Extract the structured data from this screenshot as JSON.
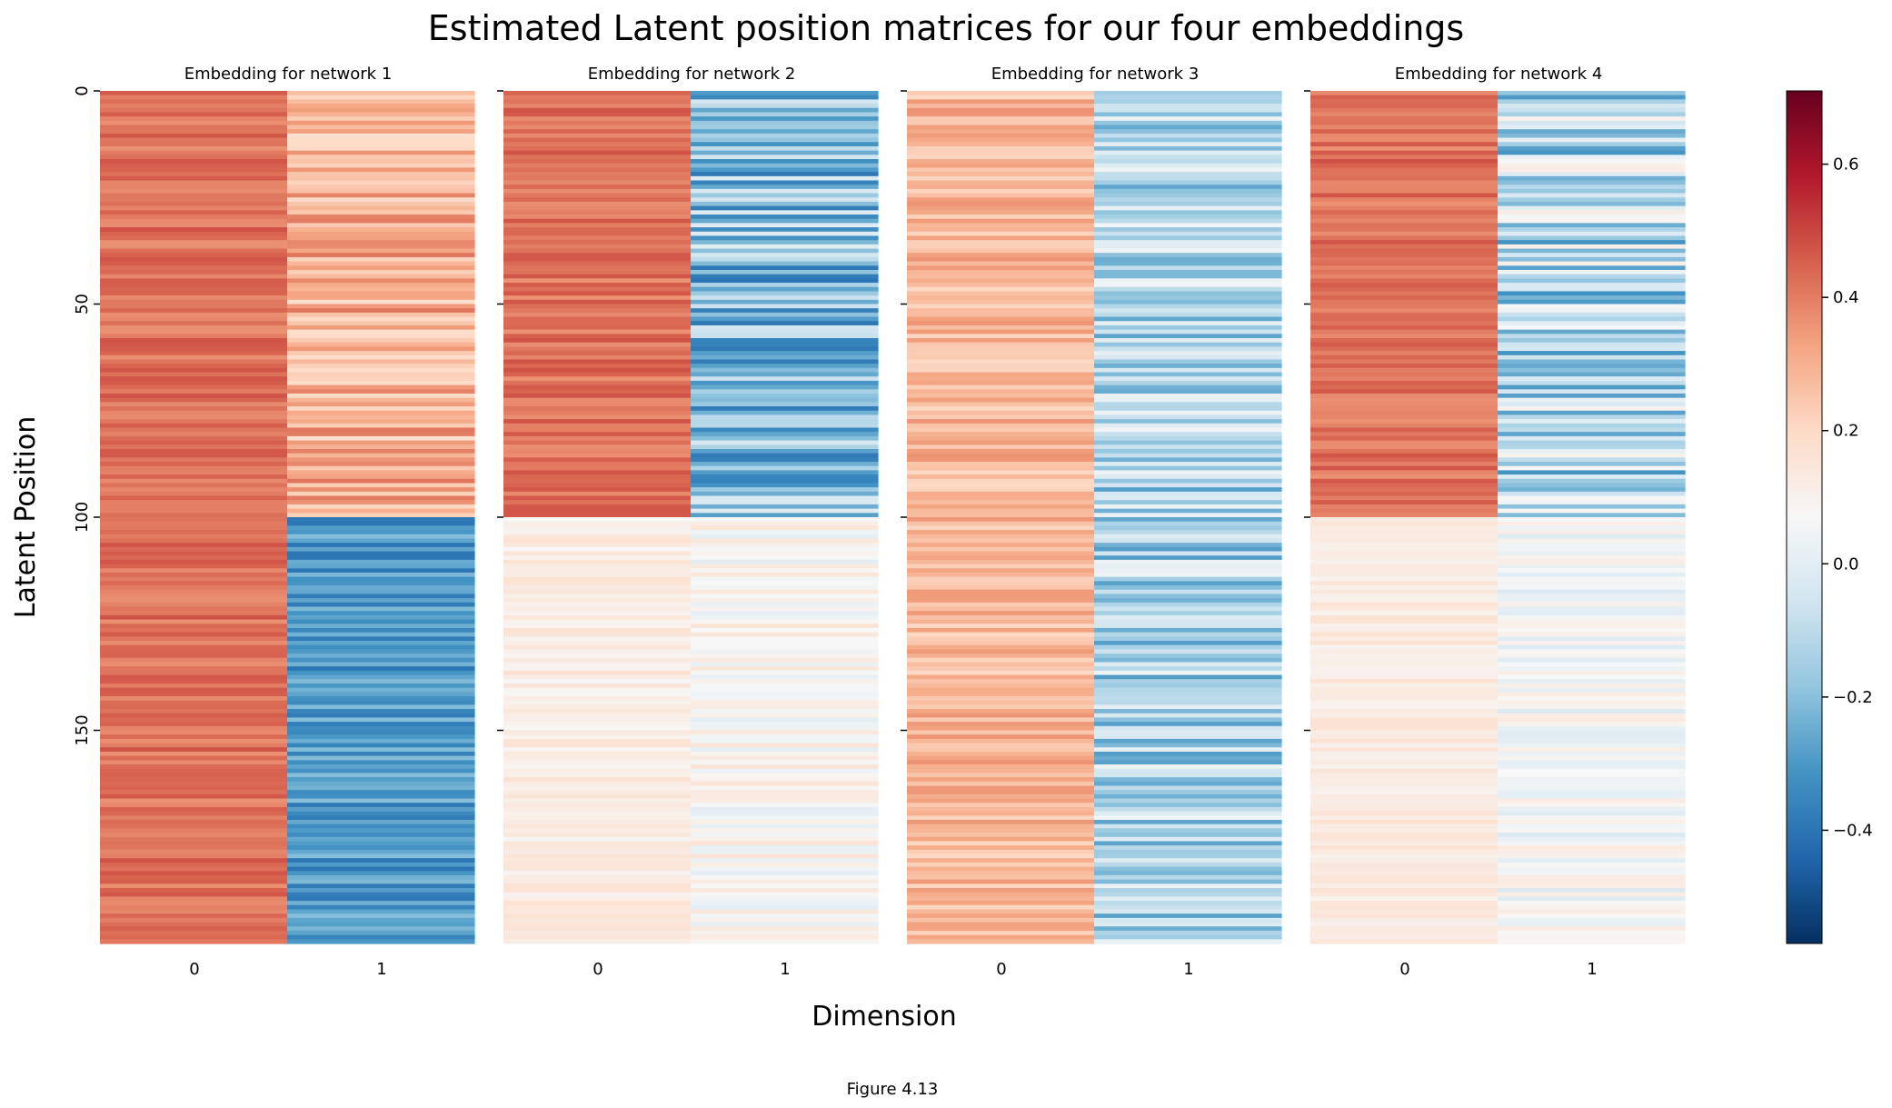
{
  "figure": {
    "title": "Estimated Latent position matrices for our four embeddings",
    "xlabel": "Dimension",
    "ylabel": "Latent Position",
    "caption": "Figure 4.13"
  },
  "colorbar": {
    "colormap": "RdBu_r",
    "vmin": -0.57,
    "vmax": 0.71,
    "ticks": [
      0.6,
      0.4,
      0.2,
      0.0,
      -0.2,
      -0.4
    ],
    "tick_labels": [
      "0.6",
      "0.4",
      "0.2",
      "0.0",
      "−0.2",
      "−0.4"
    ],
    "colors": [
      "#053061",
      "#2166ac",
      "#4393c3",
      "#92c5de",
      "#d1e5f0",
      "#f7f7f7",
      "#fddbc7",
      "#f4a582",
      "#d6604d",
      "#b2182b",
      "#67001f"
    ]
  },
  "chart_data": {
    "type": "heatmap",
    "rows": 200,
    "y_ticks": [
      0,
      50,
      100,
      150
    ],
    "x_ticks": [
      "0",
      "1"
    ],
    "panels": [
      {
        "title": "Embedding for network 1",
        "columns": [
          {
            "dimension": "0",
            "segments": [
              {
                "from": 0,
                "to": 200,
                "mean": 0.42,
                "spread": 0.06
              }
            ]
          },
          {
            "dimension": "1",
            "segments": [
              {
                "from": 0,
                "to": 100,
                "mean": 0.3,
                "spread": 0.12
              },
              {
                "from": 100,
                "to": 200,
                "mean": -0.3,
                "spread": 0.1
              }
            ]
          }
        ]
      },
      {
        "title": "Embedding for network 2",
        "columns": [
          {
            "dimension": "0",
            "segments": [
              {
                "from": 0,
                "to": 100,
                "mean": 0.42,
                "spread": 0.06
              },
              {
                "from": 100,
                "to": 200,
                "mean": 0.12,
                "spread": 0.05
              }
            ]
          },
          {
            "dimension": "1",
            "segments": [
              {
                "from": 0,
                "to": 100,
                "mean": -0.2,
                "spread": 0.2
              },
              {
                "from": 100,
                "to": 200,
                "mean": 0.08,
                "spread": 0.08
              }
            ]
          }
        ]
      },
      {
        "title": "Embedding for network 3",
        "columns": [
          {
            "dimension": "0",
            "segments": [
              {
                "from": 0,
                "to": 200,
                "mean": 0.28,
                "spread": 0.08
              }
            ]
          },
          {
            "dimension": "1",
            "segments": [
              {
                "from": 0,
                "to": 200,
                "mean": -0.12,
                "spread": 0.17
              }
            ]
          }
        ]
      },
      {
        "title": "Embedding for network 4",
        "columns": [
          {
            "dimension": "0",
            "segments": [
              {
                "from": 0,
                "to": 100,
                "mean": 0.42,
                "spread": 0.06
              },
              {
                "from": 100,
                "to": 200,
                "mean": 0.13,
                "spread": 0.04
              }
            ]
          },
          {
            "dimension": "1",
            "segments": [
              {
                "from": 0,
                "to": 100,
                "mean": -0.1,
                "spread": 0.22
              },
              {
                "from": 100,
                "to": 200,
                "mean": 0.05,
                "spread": 0.08
              }
            ]
          }
        ]
      }
    ]
  }
}
